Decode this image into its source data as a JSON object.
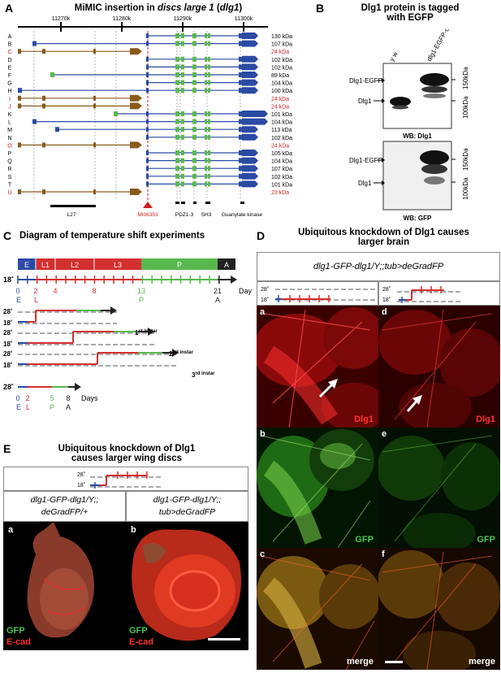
{
  "panelA": {
    "letter": "A",
    "title_pre": "MiMIC insertion in ",
    "title_em": "discs large 1",
    "title_mid": " (",
    "title_em2": "dlg1",
    "title_post": ")",
    "coords": [
      "11270k",
      "11280k",
      "11290k",
      "11300k"
    ],
    "isoforms": [
      {
        "id": "A",
        "kda": "130 kDa",
        "red": false
      },
      {
        "id": "B",
        "kda": "107 kDa",
        "red": false
      },
      {
        "id": "C",
        "kda": "24 kDa",
        "red": true
      },
      {
        "id": "D",
        "kda": "102 kDa",
        "red": false
      },
      {
        "id": "E",
        "kda": "102 kDa",
        "red": false
      },
      {
        "id": "F",
        "kda": "89 kDa",
        "red": false
      },
      {
        "id": "G",
        "kda": "104 kDa",
        "red": false
      },
      {
        "id": "H",
        "kda": "100 kDa",
        "red": false
      },
      {
        "id": "I",
        "kda": "24 kDa",
        "red": true
      },
      {
        "id": "J",
        "kda": "24 kDa",
        "red": true
      },
      {
        "id": "K",
        "kda": "101 kDa",
        "red": false
      },
      {
        "id": "L",
        "kda": "104 kDa",
        "red": false
      },
      {
        "id": "M",
        "kda": "113 kDa",
        "red": false
      },
      {
        "id": "N",
        "kda": "102 kDa",
        "red": false
      },
      {
        "id": "O",
        "kda": "24 kDa",
        "red": true
      },
      {
        "id": "P",
        "kda": "105 kDa",
        "red": false
      },
      {
        "id": "Q",
        "kda": "104 kDa",
        "red": false
      },
      {
        "id": "R",
        "kda": "107 kDa",
        "red": false
      },
      {
        "id": "S",
        "kda": "102 kDa",
        "red": false
      },
      {
        "id": "T",
        "kda": "101 kDa",
        "red": false
      },
      {
        "id": "U",
        "kda": "23 kDa",
        "red": true
      }
    ],
    "domains": {
      "l27": "L27",
      "mimic": "MI06353",
      "pdz": "PDZ1-3",
      "sh3": "SH3",
      "gk": "Guanylate kinase"
    },
    "colors": {
      "blue": "#2a4aa5",
      "brown": "#8a5a1c",
      "green": "#58b84f",
      "red": "#d02020"
    }
  },
  "panelB": {
    "letter": "B",
    "title_line1": "Dlg1 protein is tagged",
    "title_line2": "with EGFP",
    "lanes": [
      "y w",
      "dlg1-EGFP-dlg1"
    ],
    "blot1": {
      "label_top": "Dlg1-EGFP",
      "label_bottom": "Dlg1",
      "mw_top": "150kDa",
      "mw_bottom": "100kDa",
      "wb": "WB: Dlg1"
    },
    "blot2": {
      "label_top": "Dlg1-EGFP",
      "label_bottom": "Dlg1",
      "mw_top": "150kDa",
      "mw_bottom": "100kDa",
      "wb": "WB: GFP"
    }
  },
  "panelC": {
    "letter": "C",
    "title": "Diagram of temperature shift experiments",
    "stages": [
      "E",
      "L1",
      "L2",
      "L3",
      "P",
      "A"
    ],
    "temp18": "18˚",
    "temp28": "28˚",
    "days": "Days",
    "ticks18": [
      "0",
      "2",
      "4",
      "8",
      "13",
      "21"
    ],
    "sub18": [
      "E",
      "L",
      "",
      "",
      "P",
      "A"
    ],
    "ticks28": [
      "0",
      "2",
      "5",
      "8"
    ],
    "sub28": [
      "E",
      "L",
      "P",
      "A"
    ],
    "rows": [
      {
        "label": "1",
        "suffix": "st instar"
      },
      {
        "label": "2",
        "suffix": "nd instar"
      },
      {
        "label": "3",
        "suffix": "rd instar"
      }
    ]
  },
  "panelD": {
    "letter": "D",
    "title_line1": "Ubiquitous knockdown of Dlg1 causes",
    "title_line2": "larger brain",
    "genotype": "dlg1-GFP-dlg1/Y;;tub>deGradFP",
    "temps": [
      "28˚",
      "18˚"
    ],
    "images": [
      {
        "letter": "a",
        "label": "Dlg1"
      },
      {
        "letter": "d",
        "label": "Dlg1"
      },
      {
        "letter": "b",
        "label": "GFP"
      },
      {
        "letter": "e",
        "label": "GFP"
      },
      {
        "letter": "c",
        "label": "merge"
      },
      {
        "letter": "f",
        "label": "merge"
      }
    ]
  },
  "panelE": {
    "letter": "E",
    "title_line1": "Ubiquitous knockdown of Dlg1",
    "title_line2": "causes larger wing discs",
    "temps": [
      "28˚",
      "18˚"
    ],
    "geno_left_line1": "dlg1-GFP-dlg1/Y;;",
    "geno_left_line2": "deGradFP/+",
    "geno_right_line1": "dlg1-GFP-dlg1/Y;;",
    "geno_right_line2": "tub>deGradFP",
    "images": [
      {
        "letter": "a",
        "stain1": "GFP",
        "stain2": "E-cad"
      },
      {
        "letter": "b",
        "stain1": "GFP",
        "stain2": "E-cad"
      }
    ]
  }
}
